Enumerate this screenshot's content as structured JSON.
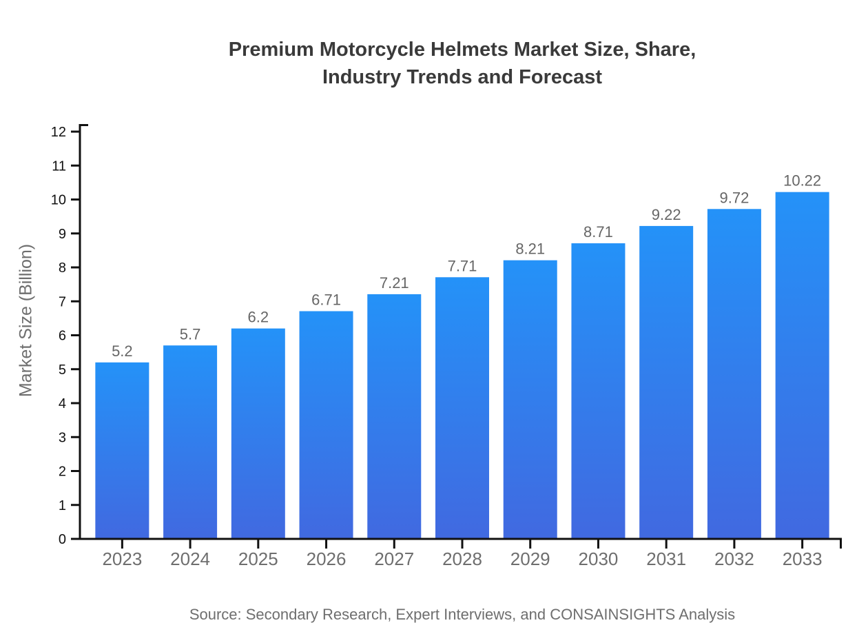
{
  "header": {
    "title_line1": "Premium Motorcycle Helmets Market Size, Share,",
    "title_line2": "Industry Trends and Forecast"
  },
  "footer": {
    "source": "Source: Secondary Research, Expert Interviews, and CONSAINSIGHTS Analysis"
  },
  "chart_data": {
    "type": "bar",
    "title": "Premium Motorcycle Helmets Market Size, Share, Industry Trends and Forecast",
    "categories": [
      "2023",
      "2024",
      "2025",
      "2026",
      "2027",
      "2028",
      "2029",
      "2030",
      "2031",
      "2032",
      "2033"
    ],
    "values": [
      5.2,
      5.7,
      6.2,
      6.71,
      7.21,
      7.71,
      8.21,
      8.71,
      9.22,
      9.72,
      10.22
    ],
    "xlabel": "",
    "ylabel": "Market Size (Billion)",
    "ylim": [
      0,
      12
    ],
    "yticks": [
      0,
      1,
      2,
      3,
      4,
      5,
      6,
      7,
      8,
      9,
      10,
      11,
      12
    ],
    "grid": false,
    "legend_position": "none",
    "value_labels_shown": true,
    "colors": {
      "bar_gradient_top": "#2492f8",
      "bar_gradient_bottom": "#4169e0",
      "axis": "#111111",
      "y_tick_label": "#111111",
      "x_tick_label": "#6e6e6e",
      "value_label": "#666666",
      "title": "#3a3a3a",
      "muted_text": "#6e6e6e"
    }
  }
}
